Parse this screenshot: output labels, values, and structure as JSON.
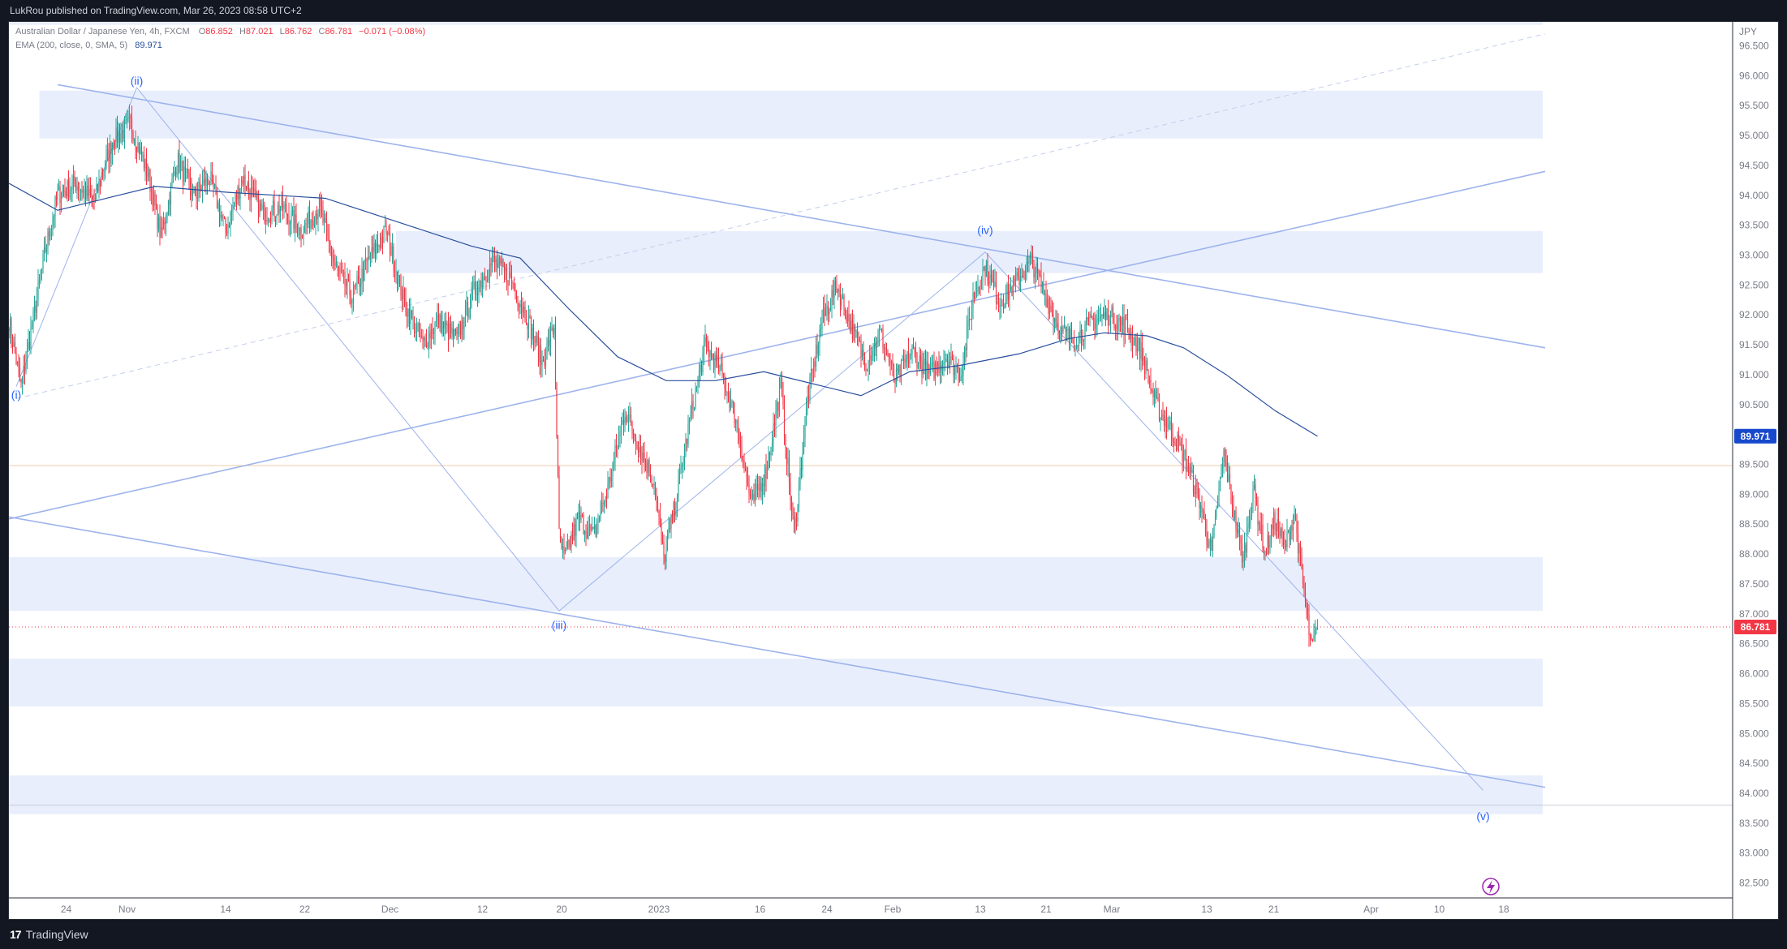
{
  "header": {
    "published": "LukRou published on TradingView.com, Mar 26, 2023 08:58 UTC+2"
  },
  "footer": {
    "brand": "TradingView"
  },
  "legend": {
    "symbol": "Australian Dollar / Japanese Yen, 4h, FXCM",
    "o_label": "O",
    "o_value": "86.852",
    "h_label": "H",
    "h_value": "87.021",
    "l_label": "L",
    "l_value": "86.762",
    "c_label": "C",
    "c_value": "86.781",
    "change": "−0.071 (−0.08%)",
    "indicator": "EMA (200, close, 0, SMA, 5)",
    "indicator_value": "89.971"
  },
  "colors": {
    "up": "#26a69a",
    "down": "#f23645",
    "ema": "#2a4f9d",
    "trendline": "#9db3ec",
    "zone": "#e8eefc",
    "wave_label": "#2962ff",
    "price_tag": "#f23645",
    "ema_tag": "#1848cc"
  },
  "chart_data": {
    "type": "candlestick",
    "currency_label": "JPY",
    "price_axis": {
      "min": 82.25,
      "max": 96.9,
      "ticks": [
        "96.500",
        "96.000",
        "95.500",
        "95.000",
        "94.500",
        "94.000",
        "93.500",
        "93.000",
        "92.500",
        "92.000",
        "91.500",
        "91.000",
        "90.500",
        "90.000",
        "89.500",
        "89.000",
        "88.500",
        "88.000",
        "87.500",
        "87.000",
        "86.500",
        "86.000",
        "85.500",
        "85.000",
        "84.500",
        "84.000",
        "83.500",
        "83.000",
        "82.500"
      ],
      "current_price": "86.781",
      "ema_value": "89.971"
    },
    "time_axis": {
      "labels": [
        {
          "text": "24",
          "idx": 47
        },
        {
          "text": "Nov",
          "idx": 97
        },
        {
          "text": "14",
          "idx": 178
        },
        {
          "text": "22",
          "idx": 243
        },
        {
          "text": "Dec",
          "idx": 313
        },
        {
          "text": "12",
          "idx": 389
        },
        {
          "text": "20",
          "idx": 454
        },
        {
          "text": "2023",
          "idx": 534
        },
        {
          "text": "16",
          "idx": 617
        },
        {
          "text": "24",
          "idx": 672
        },
        {
          "text": "Feb",
          "idx": 726
        },
        {
          "text": "13",
          "idx": 798
        },
        {
          "text": "21",
          "idx": 852
        },
        {
          "text": "Mar",
          "idx": 906
        },
        {
          "text": "13",
          "idx": 984
        },
        {
          "text": "21",
          "idx": 1039
        },
        {
          "text": "Apr",
          "idx": 1119
        },
        {
          "text": "10",
          "idx": 1175
        },
        {
          "text": "18",
          "idx": 1228
        }
      ]
    },
    "wave_labels": [
      {
        "text": "(i)",
        "idx": 6,
        "price": 90.6
      },
      {
        "text": "(ii)",
        "idx": 105,
        "price": 95.85
      },
      {
        "text": "(iii)",
        "idx": 452,
        "price": 86.75
      },
      {
        "text": "(iv)",
        "idx": 802,
        "price": 93.35
      },
      {
        "text": "(v)",
        "idx": 1211,
        "price": 83.55
      }
    ],
    "price_anchors": [
      {
        "idx": 0,
        "price": 91.9
      },
      {
        "idx": 10,
        "price": 90.8
      },
      {
        "idx": 18,
        "price": 91.7
      },
      {
        "idx": 30,
        "price": 93.1
      },
      {
        "idx": 40,
        "price": 94.0
      },
      {
        "idx": 55,
        "price": 94.2
      },
      {
        "idx": 70,
        "price": 93.9
      },
      {
        "idx": 85,
        "price": 94.9
      },
      {
        "idx": 100,
        "price": 95.2
      },
      {
        "idx": 115,
        "price": 94.3
      },
      {
        "idx": 125,
        "price": 93.3
      },
      {
        "idx": 138,
        "price": 94.6
      },
      {
        "idx": 152,
        "price": 94.0
      },
      {
        "idx": 165,
        "price": 94.3
      },
      {
        "idx": 178,
        "price": 93.4
      },
      {
        "idx": 192,
        "price": 94.3
      },
      {
        "idx": 208,
        "price": 93.7
      },
      {
        "idx": 225,
        "price": 93.8
      },
      {
        "idx": 240,
        "price": 93.4
      },
      {
        "idx": 255,
        "price": 93.8
      },
      {
        "idx": 268,
        "price": 92.8
      },
      {
        "idx": 282,
        "price": 92.3
      },
      {
        "idx": 295,
        "price": 92.9
      },
      {
        "idx": 310,
        "price": 93.4
      },
      {
        "idx": 325,
        "price": 92.2
      },
      {
        "idx": 340,
        "price": 91.5
      },
      {
        "idx": 352,
        "price": 91.9
      },
      {
        "idx": 368,
        "price": 91.6
      },
      {
        "idx": 382,
        "price": 92.4
      },
      {
        "idx": 398,
        "price": 92.9
      },
      {
        "idx": 412,
        "price": 92.6
      },
      {
        "idx": 425,
        "price": 92.0
      },
      {
        "idx": 438,
        "price": 91.2
      },
      {
        "idx": 448,
        "price": 91.8
      },
      {
        "idx": 452,
        "price": 88.3
      },
      {
        "idx": 456,
        "price": 87.9
      },
      {
        "idx": 468,
        "price": 88.6
      },
      {
        "idx": 480,
        "price": 88.3
      },
      {
        "idx": 492,
        "price": 89.1
      },
      {
        "idx": 506,
        "price": 90.4
      },
      {
        "idx": 518,
        "price": 89.8
      },
      {
        "idx": 530,
        "price": 89.2
      },
      {
        "idx": 538,
        "price": 87.9
      },
      {
        "idx": 548,
        "price": 88.9
      },
      {
        "idx": 560,
        "price": 90.3
      },
      {
        "idx": 572,
        "price": 91.5
      },
      {
        "idx": 586,
        "price": 91.0
      },
      {
        "idx": 598,
        "price": 90.2
      },
      {
        "idx": 610,
        "price": 88.8
      },
      {
        "idx": 622,
        "price": 89.4
      },
      {
        "idx": 634,
        "price": 90.8
      },
      {
        "idx": 645,
        "price": 88.3
      },
      {
        "idx": 656,
        "price": 90.6
      },
      {
        "idx": 668,
        "price": 91.9
      },
      {
        "idx": 680,
        "price": 92.5
      },
      {
        "idx": 692,
        "price": 91.8
      },
      {
        "idx": 704,
        "price": 91.2
      },
      {
        "idx": 716,
        "price": 91.7
      },
      {
        "idx": 728,
        "price": 90.9
      },
      {
        "idx": 742,
        "price": 91.4
      },
      {
        "idx": 756,
        "price": 91.0
      },
      {
        "idx": 770,
        "price": 91.3
      },
      {
        "idx": 782,
        "price": 91.0
      },
      {
        "idx": 792,
        "price": 92.3
      },
      {
        "idx": 802,
        "price": 92.8
      },
      {
        "idx": 814,
        "price": 92.2
      },
      {
        "idx": 826,
        "price": 92.5
      },
      {
        "idx": 840,
        "price": 92.9
      },
      {
        "idx": 852,
        "price": 92.3
      },
      {
        "idx": 864,
        "price": 91.7
      },
      {
        "idx": 876,
        "price": 91.6
      },
      {
        "idx": 890,
        "price": 91.9
      },
      {
        "idx": 904,
        "price": 92.0
      },
      {
        "idx": 918,
        "price": 91.8
      },
      {
        "idx": 930,
        "price": 91.4
      },
      {
        "idx": 942,
        "price": 90.5
      },
      {
        "idx": 954,
        "price": 90.1
      },
      {
        "idx": 966,
        "price": 89.6
      },
      {
        "idx": 978,
        "price": 88.9
      },
      {
        "idx": 988,
        "price": 88.0
      },
      {
        "idx": 998,
        "price": 89.7
      },
      {
        "idx": 1006,
        "price": 88.7
      },
      {
        "idx": 1014,
        "price": 87.9
      },
      {
        "idx": 1022,
        "price": 89.1
      },
      {
        "idx": 1032,
        "price": 88.0
      },
      {
        "idx": 1040,
        "price": 88.6
      },
      {
        "idx": 1048,
        "price": 88.1
      },
      {
        "idx": 1056,
        "price": 88.7
      },
      {
        "idx": 1063,
        "price": 87.5
      },
      {
        "idx": 1070,
        "price": 86.4
      },
      {
        "idx": 1075,
        "price": 86.78
      }
    ],
    "ema_anchors": [
      {
        "idx": 0,
        "price": 94.2
      },
      {
        "idx": 40,
        "price": 93.75
      },
      {
        "idx": 80,
        "price": 93.95
      },
      {
        "idx": 120,
        "price": 94.15
      },
      {
        "idx": 180,
        "price": 94.05
      },
      {
        "idx": 260,
        "price": 93.95
      },
      {
        "idx": 320,
        "price": 93.55
      },
      {
        "idx": 380,
        "price": 93.15
      },
      {
        "idx": 420,
        "price": 92.95
      },
      {
        "idx": 460,
        "price": 92.1
      },
      {
        "idx": 500,
        "price": 91.3
      },
      {
        "idx": 540,
        "price": 90.9
      },
      {
        "idx": 580,
        "price": 90.9
      },
      {
        "idx": 620,
        "price": 91.05
      },
      {
        "idx": 660,
        "price": 90.85
      },
      {
        "idx": 700,
        "price": 90.65
      },
      {
        "idx": 740,
        "price": 91.05
      },
      {
        "idx": 780,
        "price": 91.15
      },
      {
        "idx": 830,
        "price": 91.35
      },
      {
        "idx": 870,
        "price": 91.6
      },
      {
        "idx": 900,
        "price": 91.7
      },
      {
        "idx": 935,
        "price": 91.65
      },
      {
        "idx": 965,
        "price": 91.45
      },
      {
        "idx": 1000,
        "price": 91.0
      },
      {
        "idx": 1040,
        "price": 90.4
      },
      {
        "idx": 1075,
        "price": 89.97
      }
    ],
    "zones": [
      {
        "from_idx": -10,
        "to_idx": 1260,
        "low": 96.85,
        "high": 97.3
      },
      {
        "from_idx": 25,
        "to_idx": 1260,
        "low": 94.95,
        "high": 95.75
      },
      {
        "from_idx": 318,
        "to_idx": 1260,
        "low": 92.7,
        "high": 93.4
      },
      {
        "from_idx": -10,
        "to_idx": 1260,
        "low": 87.05,
        "high": 87.95
      },
      {
        "from_idx": -10,
        "to_idx": 1260,
        "low": 85.45,
        "high": 86.25
      },
      {
        "from_idx": -10,
        "to_idx": 1260,
        "low": 83.65,
        "high": 84.3
      }
    ],
    "trendlines": [
      {
        "from_idx": 40,
        "from_price": 95.85,
        "to_idx": 1262,
        "to_price": 91.45,
        "style": "solid"
      },
      {
        "from_idx": -8,
        "from_price": 88.65,
        "to_idx": 1262,
        "to_price": 84.1,
        "style": "solid"
      },
      {
        "from_idx": -8,
        "from_price": 88.55,
        "to_idx": 1262,
        "to_price": 94.4,
        "style": "solid"
      },
      {
        "from_idx": 6,
        "from_price": 90.6,
        "to_idx": 1262,
        "to_price": 96.7,
        "style": "dashed"
      }
    ],
    "wave_path": [
      {
        "idx": 6,
        "price": 90.8
      },
      {
        "idx": 105,
        "price": 95.8
      },
      {
        "idx": 452,
        "price": 87.05
      },
      {
        "idx": 802,
        "price": 93.05
      },
      {
        "idx": 1211,
        "price": 84.05
      }
    ],
    "horizontal_levels": [
      {
        "price": 89.48,
        "color": "#f2c8a8",
        "style": "solid"
      },
      {
        "price": 86.78,
        "color": "#f23645",
        "style": "dotted"
      },
      {
        "price": 83.8,
        "color": "#c9ccd6",
        "style": "solid"
      }
    ]
  }
}
